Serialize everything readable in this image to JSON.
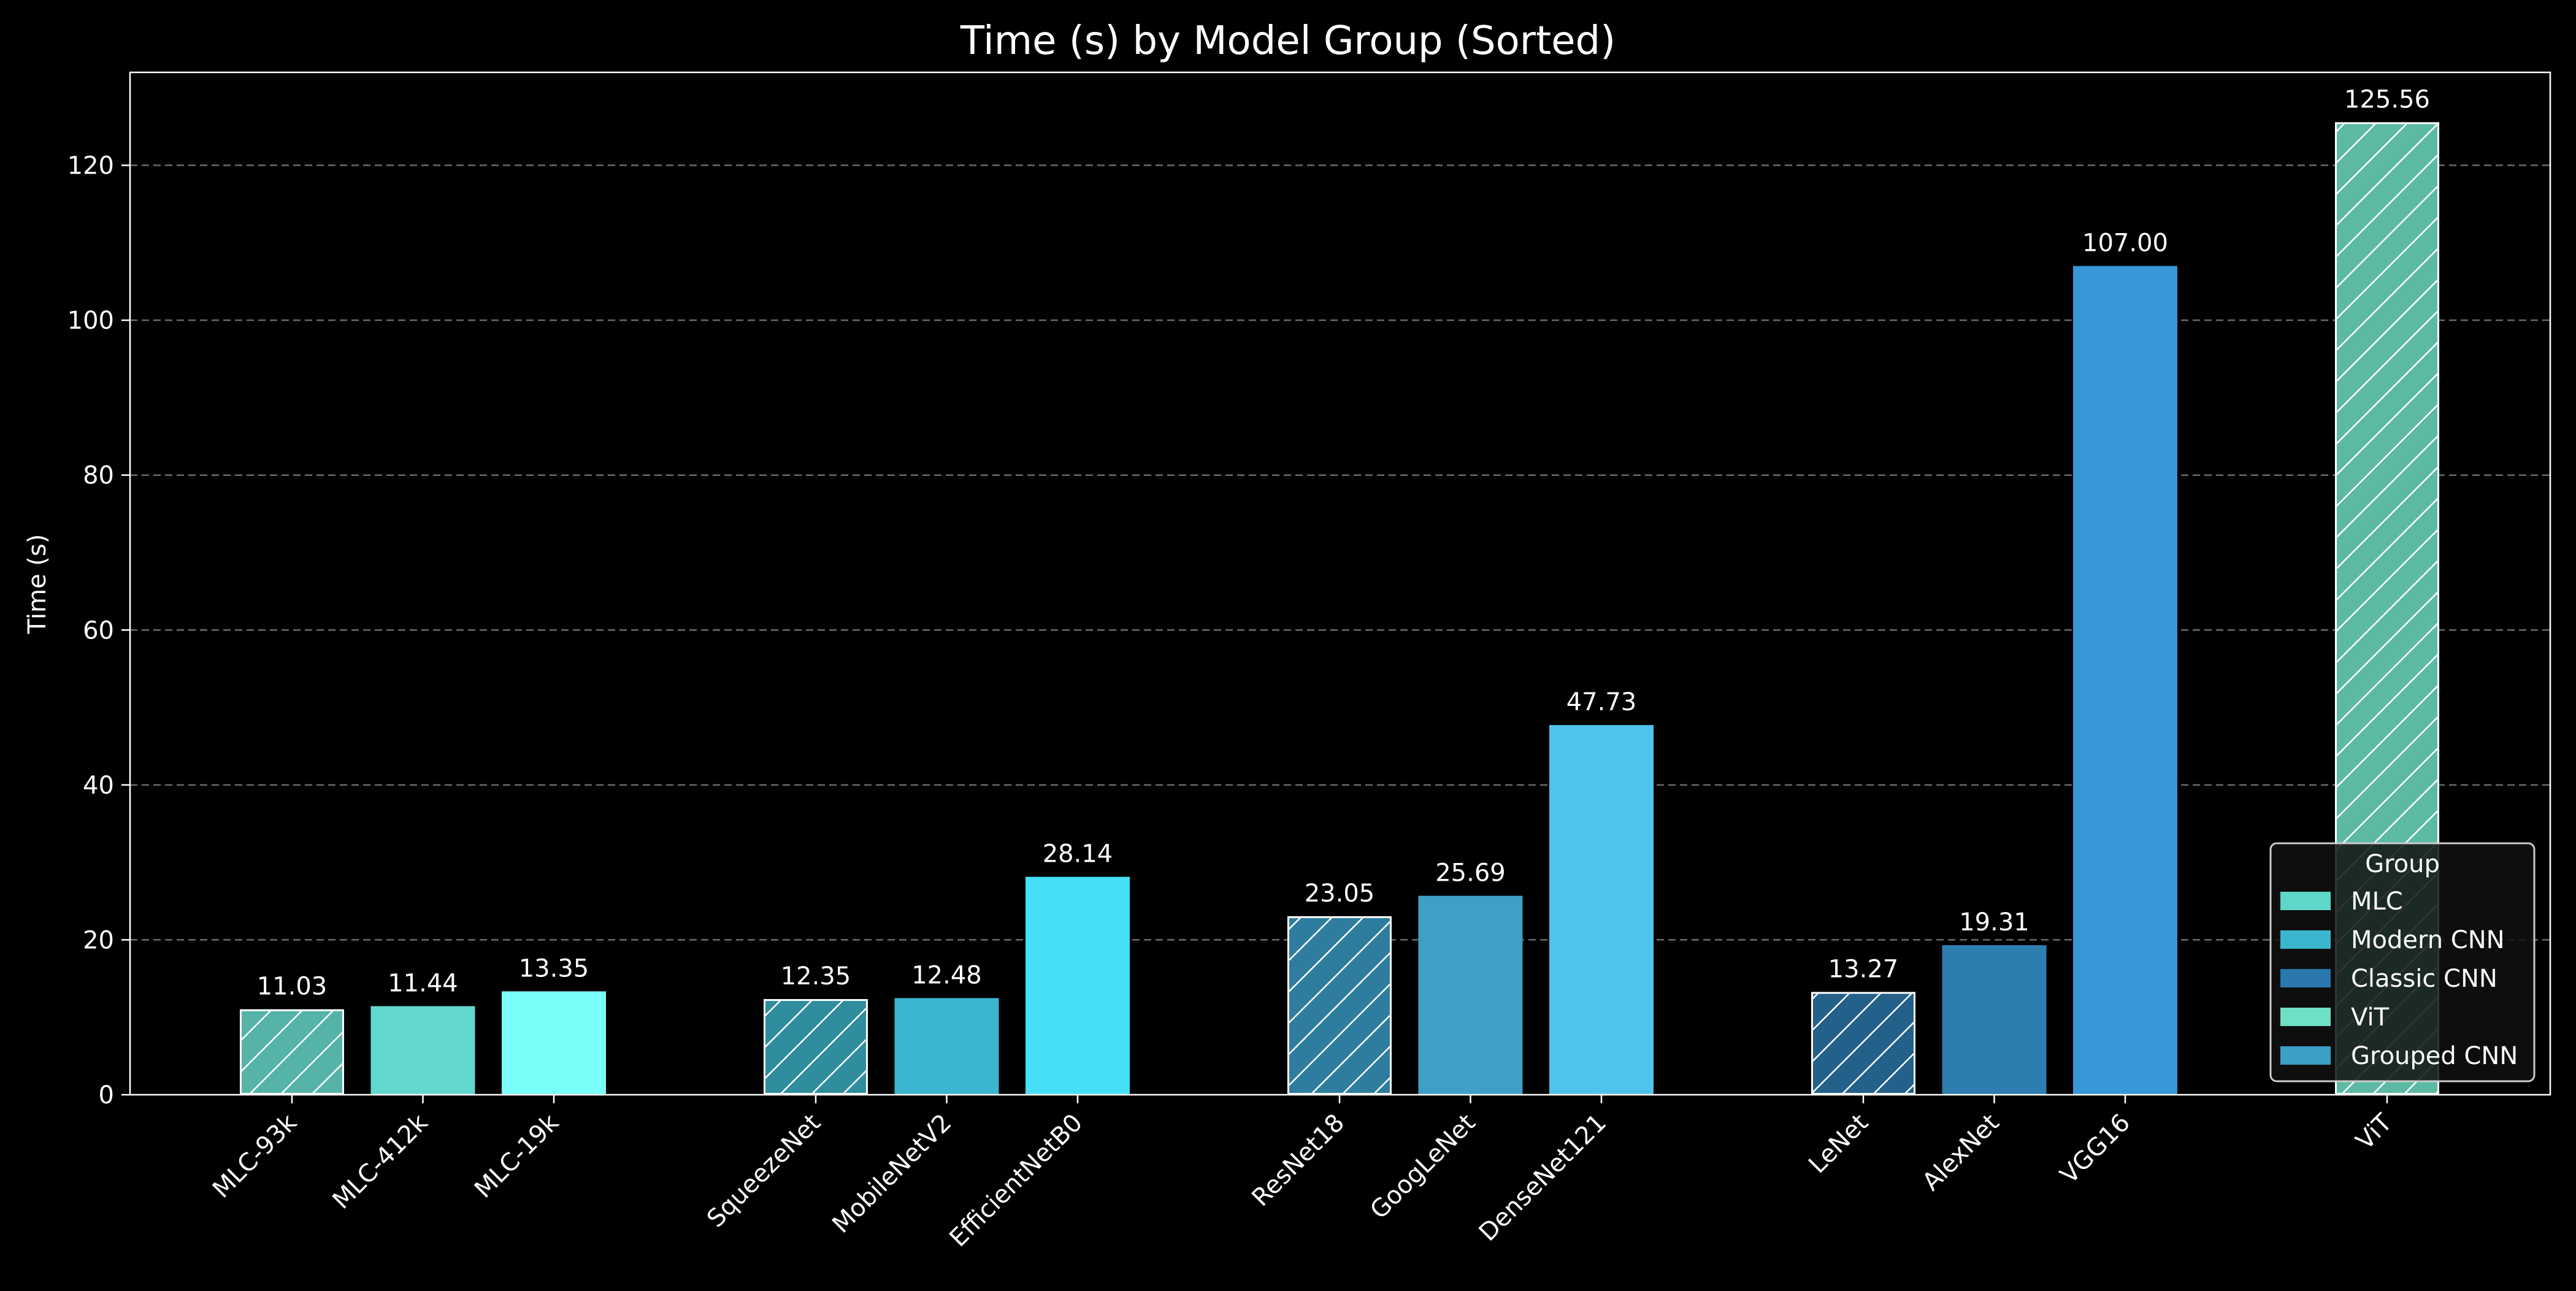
{
  "chart_data": {
    "type": "bar",
    "title": "Time (s) by Model Group (Sorted)",
    "xlabel": "",
    "ylabel": "Time (s)",
    "ylim": [
      0,
      132
    ],
    "yticks": [
      0,
      20,
      40,
      60,
      80,
      100,
      120
    ],
    "grid": "horizontal dashed",
    "legend_position": "bottom-right",
    "legend_title": "Group",
    "groups": [
      {
        "name": "MLC",
        "color": "#5ed6c8"
      },
      {
        "name": "Modern CNN",
        "color": "#3bb6cf"
      },
      {
        "name": "Classic CNN",
        "color": "#2a78ae"
      },
      {
        "name": "ViT",
        "color": "#6ee0c6"
      },
      {
        "name": "Grouped CNN",
        "color": "#3b9fc6"
      }
    ],
    "bars": [
      {
        "label": "MLC-93k",
        "value": 11.03,
        "value_label": "11.03",
        "color": "#55b3a8",
        "hatched": true,
        "slot": 0
      },
      {
        "label": "MLC-412k",
        "value": 11.44,
        "value_label": "11.44",
        "color": "#62d8cf",
        "hatched": false,
        "slot": 1
      },
      {
        "label": "MLC-19k",
        "value": 13.35,
        "value_label": "13.35",
        "color": "#7afcf8",
        "hatched": false,
        "slot": 2
      },
      {
        "label": "SqueezeNet",
        "value": 12.35,
        "value_label": "12.35",
        "color": "#2f8d9e",
        "hatched": true,
        "slot": 4
      },
      {
        "label": "MobileNetV2",
        "value": 12.48,
        "value_label": "12.48",
        "color": "#3bb6cf",
        "hatched": false,
        "slot": 5
      },
      {
        "label": "EfficientNetB0",
        "value": 28.14,
        "value_label": "28.14",
        "color": "#45e0f8",
        "hatched": false,
        "slot": 6
      },
      {
        "label": "ResNet18",
        "value": 23.05,
        "value_label": "23.05",
        "color": "#2e7d9e",
        "hatched": true,
        "slot": 8
      },
      {
        "label": "GoogLeNet",
        "value": 25.69,
        "value_label": "25.69",
        "color": "#3ea0c6",
        "hatched": false,
        "slot": 9
      },
      {
        "label": "DenseNet121",
        "value": 47.73,
        "value_label": "47.73",
        "color": "#50c3ed",
        "hatched": false,
        "slot": 10
      },
      {
        "label": "LeNet",
        "value": 13.27,
        "value_label": "13.27",
        "color": "#23608a",
        "hatched": true,
        "slot": 12
      },
      {
        "label": "AlexNet",
        "value": 19.31,
        "value_label": "19.31",
        "color": "#2d7db0",
        "hatched": false,
        "slot": 13
      },
      {
        "label": "VGG16",
        "value": 107.0,
        "value_label": "107.00",
        "color": "#3797d8",
        "hatched": false,
        "slot": 14
      },
      {
        "label": "ViT",
        "value": 125.56,
        "value_label": "125.56",
        "color": "#5cbaa4",
        "hatched": true,
        "slot": 16
      }
    ]
  }
}
